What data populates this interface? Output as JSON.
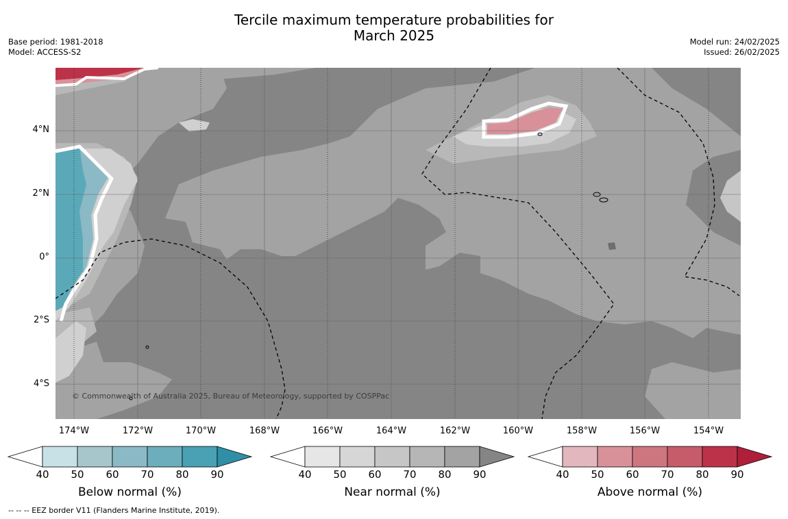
{
  "title": {
    "line1": "Tercile maximum temperature probabilities for",
    "line2": "March 2025"
  },
  "meta_left": {
    "base_period": "Base period: 1981-2018",
    "model": "Model: ACCESS-S2"
  },
  "meta_right": {
    "model_run": "Model run: 24/02/2025",
    "issued": "Issued: 26/02/2025"
  },
  "map": {
    "copyright": "© Commonwealth of Australia 2025, Bureau of Meteorology, supported by COSPPac",
    "lon_labels": [
      "174°W",
      "172°W",
      "170°W",
      "168°W",
      "166°W",
      "164°W",
      "162°W",
      "160°W",
      "158°W",
      "156°W",
      "154°W"
    ],
    "lat_labels": [
      "4°N",
      "2°N",
      "0°",
      "2°S",
      "4°S"
    ],
    "lon_range": [
      -174.6,
      -153.0
    ],
    "lat_range": [
      -5.0,
      6.0
    ]
  },
  "colorbars": [
    {
      "title": "Below normal (%)",
      "ticks": [
        "40",
        "50",
        "60",
        "70",
        "80",
        "90"
      ],
      "colors": [
        "#ffffff",
        "#c7e1e6",
        "#a7c6cc",
        "#8cb9c6",
        "#6caebb",
        "#4aa1b3",
        "#2f8fa6"
      ]
    },
    {
      "title": "Near normal (%)",
      "ticks": [
        "40",
        "50",
        "60",
        "70",
        "80",
        "90"
      ],
      "colors": [
        "#ffffff",
        "#e6e6e6",
        "#d6d6d6",
        "#c6c6c6",
        "#b6b6b6",
        "#a3a3a3",
        "#858585"
      ]
    },
    {
      "title": "Above normal (%)",
      "ticks": [
        "40",
        "50",
        "60",
        "70",
        "80",
        "90"
      ],
      "colors": [
        "#ffffff",
        "#e2b7bd",
        "#d99199",
        "#ce7680",
        "#c65c69",
        "#bc3249",
        "#b01f3a"
      ]
    }
  ],
  "footnote": "--  --  -- EEZ border V11 (Flanders Marine Institute, 2019)."
}
